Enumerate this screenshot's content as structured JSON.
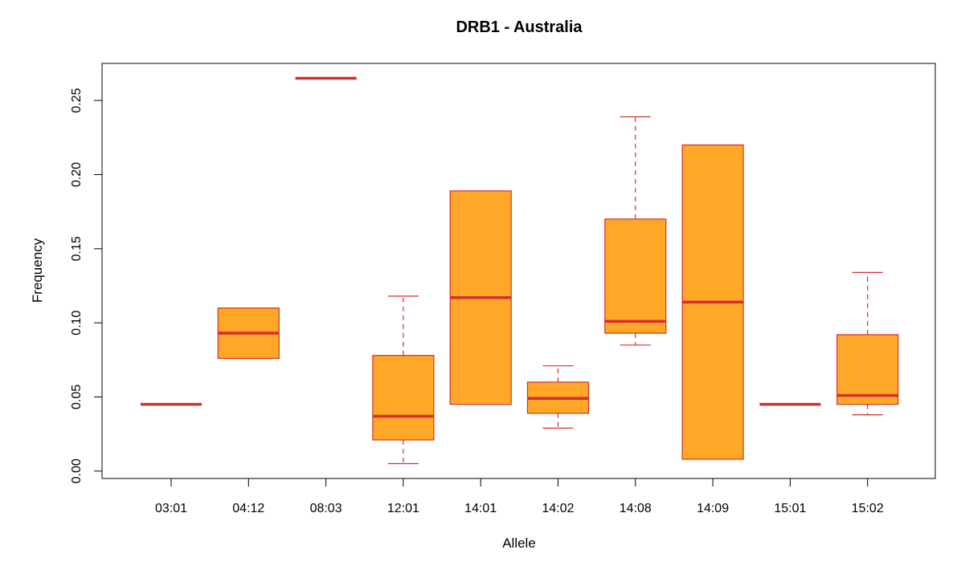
{
  "chart_data": {
    "type": "box",
    "title": "DRB1 - Australia",
    "xlabel": "Allele",
    "ylabel": "Frequency",
    "ylim": [
      -0.005,
      0.275
    ],
    "yticks": [
      0.0,
      0.05,
      0.1,
      0.15,
      0.2,
      0.25
    ],
    "ytick_labels": [
      "0.00",
      "0.05",
      "0.10",
      "0.15",
      "0.20",
      "0.25"
    ],
    "grid": false,
    "box_fill": "#ffa726",
    "box_stroke": "#d32f2f",
    "median_color": "#d32f2f",
    "categories": [
      "03:01",
      "04:12",
      "08:03",
      "12:01",
      "14:01",
      "14:02",
      "14:08",
      "14:09",
      "15:01",
      "15:02"
    ],
    "boxes": [
      {
        "category": "03:01",
        "whisker_low": 0.045,
        "q1": 0.045,
        "median": 0.045,
        "q3": 0.045,
        "whisker_high": 0.045
      },
      {
        "category": "04:12",
        "whisker_low": 0.076,
        "q1": 0.076,
        "median": 0.093,
        "q3": 0.11,
        "whisker_high": 0.11
      },
      {
        "category": "08:03",
        "whisker_low": 0.265,
        "q1": 0.265,
        "median": 0.265,
        "q3": 0.265,
        "whisker_high": 0.265
      },
      {
        "category": "12:01",
        "whisker_low": 0.005,
        "q1": 0.021,
        "median": 0.037,
        "q3": 0.078,
        "whisker_high": 0.118
      },
      {
        "category": "14:01",
        "whisker_low": 0.045,
        "q1": 0.045,
        "median": 0.117,
        "q3": 0.189,
        "whisker_high": 0.189
      },
      {
        "category": "14:02",
        "whisker_low": 0.029,
        "q1": 0.039,
        "median": 0.049,
        "q3": 0.06,
        "whisker_high": 0.071
      },
      {
        "category": "14:08",
        "whisker_low": 0.085,
        "q1": 0.093,
        "median": 0.101,
        "q3": 0.17,
        "whisker_high": 0.239
      },
      {
        "category": "14:09",
        "whisker_low": 0.008,
        "q1": 0.008,
        "median": 0.114,
        "q3": 0.22,
        "whisker_high": 0.22
      },
      {
        "category": "15:01",
        "whisker_low": 0.045,
        "q1": 0.045,
        "median": 0.045,
        "q3": 0.045,
        "whisker_high": 0.045
      },
      {
        "category": "15:02",
        "whisker_low": 0.038,
        "q1": 0.045,
        "median": 0.051,
        "q3": 0.092,
        "whisker_high": 0.134
      }
    ]
  }
}
